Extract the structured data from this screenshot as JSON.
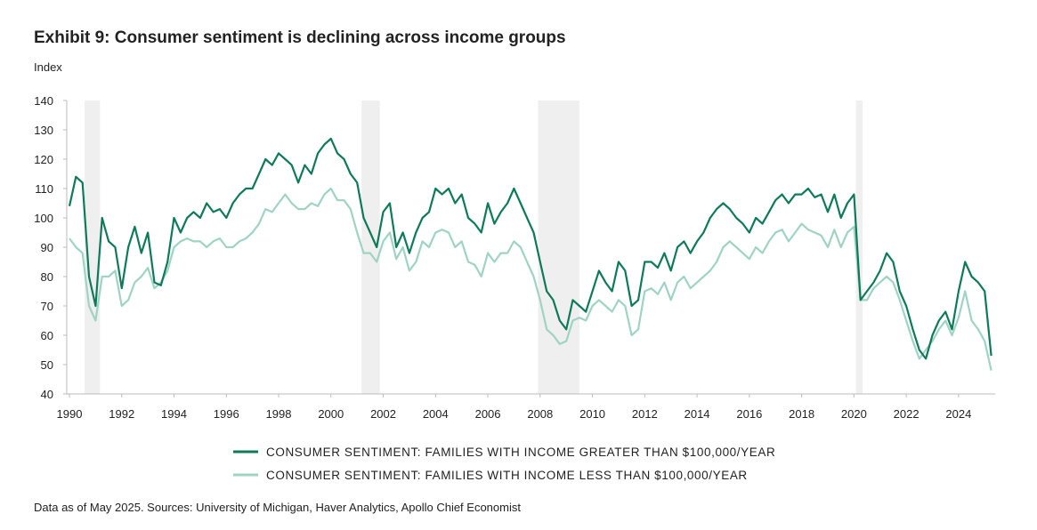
{
  "chart_data": {
    "type": "line",
    "title": "Exhibit 9: Consumer sentiment is declining across income groups",
    "y_label": "Index",
    "footnote": "Data as of May 2025. Sources: University of Michigan, Haver Analytics, Apollo Chief Economist",
    "x": [
      1990,
      1990.25,
      1990.5,
      1990.75,
      1991,
      1991.25,
      1991.5,
      1991.75,
      1992,
      1992.25,
      1992.5,
      1992.75,
      1993,
      1993.25,
      1993.5,
      1993.75,
      1994,
      1994.25,
      1994.5,
      1994.75,
      1995,
      1995.25,
      1995.5,
      1995.75,
      1996,
      1996.25,
      1996.5,
      1996.75,
      1997,
      1997.25,
      1997.5,
      1997.75,
      1998,
      1998.25,
      1998.5,
      1998.75,
      1999,
      1999.25,
      1999.5,
      1999.75,
      2000,
      2000.25,
      2000.5,
      2000.75,
      2001,
      2001.25,
      2001.5,
      2001.75,
      2002,
      2002.25,
      2002.5,
      2002.75,
      2003,
      2003.25,
      2003.5,
      2003.75,
      2004,
      2004.25,
      2004.5,
      2004.75,
      2005,
      2005.25,
      2005.5,
      2005.75,
      2006,
      2006.25,
      2006.5,
      2006.75,
      2007,
      2007.25,
      2007.5,
      2007.75,
      2008,
      2008.25,
      2008.5,
      2008.75,
      2009,
      2009.25,
      2009.5,
      2009.75,
      2010,
      2010.25,
      2010.5,
      2010.75,
      2011,
      2011.25,
      2011.5,
      2011.75,
      2012,
      2012.25,
      2012.5,
      2012.75,
      2013,
      2013.25,
      2013.5,
      2013.75,
      2014,
      2014.25,
      2014.5,
      2014.75,
      2015,
      2015.25,
      2015.5,
      2015.75,
      2016,
      2016.25,
      2016.5,
      2016.75,
      2017,
      2017.25,
      2017.5,
      2017.75,
      2018,
      2018.25,
      2018.5,
      2018.75,
      2019,
      2019.25,
      2019.5,
      2019.75,
      2020,
      2020.25,
      2020.5,
      2020.75,
      2021,
      2021.25,
      2021.5,
      2021.75,
      2022,
      2022.25,
      2022.5,
      2022.75,
      2023,
      2023.25,
      2023.5,
      2023.75,
      2024,
      2024.25,
      2024.5,
      2024.75,
      2025,
      2025.25
    ],
    "series": [
      {
        "name": "CONSUMER SENTIMENT: FAMILIES WITH INCOME GREATER THAN $100,000/YEAR",
        "color": "#0e7a5a",
        "values": [
          104,
          114,
          112,
          80,
          70,
          100,
          92,
          90,
          76,
          90,
          97,
          88,
          95,
          78,
          77,
          85,
          100,
          95,
          100,
          102,
          100,
          105,
          102,
          103,
          100,
          105,
          108,
          110,
          110,
          115,
          120,
          118,
          122,
          120,
          118,
          112,
          118,
          115,
          122,
          125,
          127,
          122,
          120,
          115,
          112,
          100,
          95,
          90,
          102,
          105,
          90,
          95,
          88,
          95,
          100,
          102,
          110,
          108,
          110,
          105,
          108,
          100,
          98,
          95,
          105,
          98,
          102,
          105,
          110,
          105,
          100,
          95,
          85,
          75,
          72,
          65,
          62,
          72,
          70,
          68,
          75,
          82,
          78,
          75,
          85,
          82,
          70,
          72,
          85,
          85,
          83,
          88,
          82,
          90,
          92,
          88,
          92,
          95,
          100,
          103,
          105,
          103,
          100,
          98,
          95,
          100,
          98,
          102,
          106,
          108,
          105,
          108,
          108,
          110,
          107,
          108,
          102,
          108,
          100,
          105,
          108,
          72,
          75,
          78,
          82,
          88,
          85,
          75,
          70,
          62,
          55,
          52,
          60,
          65,
          68,
          62,
          75,
          85,
          80,
          78,
          75,
          53
        ]
      },
      {
        "name": "CONSUMER SENTIMENT: FAMILIES WITH INCOME LESS THAN $100,000/YEAR",
        "color": "#9fd3c3",
        "values": [
          93,
          90,
          88,
          70,
          65,
          80,
          80,
          82,
          70,
          72,
          78,
          80,
          83,
          76,
          78,
          82,
          90,
          92,
          93,
          92,
          92,
          90,
          92,
          93,
          90,
          90,
          92,
          93,
          95,
          98,
          103,
          102,
          105,
          108,
          105,
          103,
          103,
          105,
          104,
          108,
          110,
          106,
          106,
          103,
          95,
          88,
          88,
          85,
          92,
          95,
          86,
          90,
          82,
          85,
          92,
          90,
          95,
          96,
          95,
          90,
          92,
          85,
          84,
          80,
          88,
          85,
          88,
          88,
          92,
          90,
          85,
          80,
          72,
          62,
          60,
          57,
          58,
          65,
          66,
          65,
          70,
          72,
          70,
          68,
          72,
          70,
          60,
          62,
          75,
          76,
          74,
          78,
          72,
          78,
          80,
          76,
          78,
          80,
          82,
          85,
          90,
          92,
          90,
          88,
          86,
          90,
          88,
          92,
          95,
          96,
          92,
          95,
          98,
          96,
          95,
          94,
          90,
          96,
          90,
          95,
          97,
          72,
          72,
          76,
          78,
          80,
          78,
          72,
          65,
          58,
          52,
          55,
          58,
          62,
          65,
          60,
          66,
          75,
          65,
          62,
          58,
          48
        ]
      }
    ],
    "recessions": [
      [
        1990.58,
        1991.17
      ],
      [
        2001.17,
        2001.87
      ],
      [
        2007.92,
        2009.5
      ],
      [
        2020.08,
        2020.33
      ]
    ],
    "xlim": [
      1990,
      2025.4
    ],
    "ylim": [
      40,
      140
    ],
    "xticks": [
      1990,
      1992,
      1994,
      1996,
      1998,
      2000,
      2002,
      2004,
      2006,
      2008,
      2010,
      2012,
      2014,
      2016,
      2018,
      2020,
      2022,
      2024
    ],
    "yticks": [
      40,
      50,
      60,
      70,
      80,
      90,
      100,
      110,
      120,
      130,
      140
    ]
  }
}
